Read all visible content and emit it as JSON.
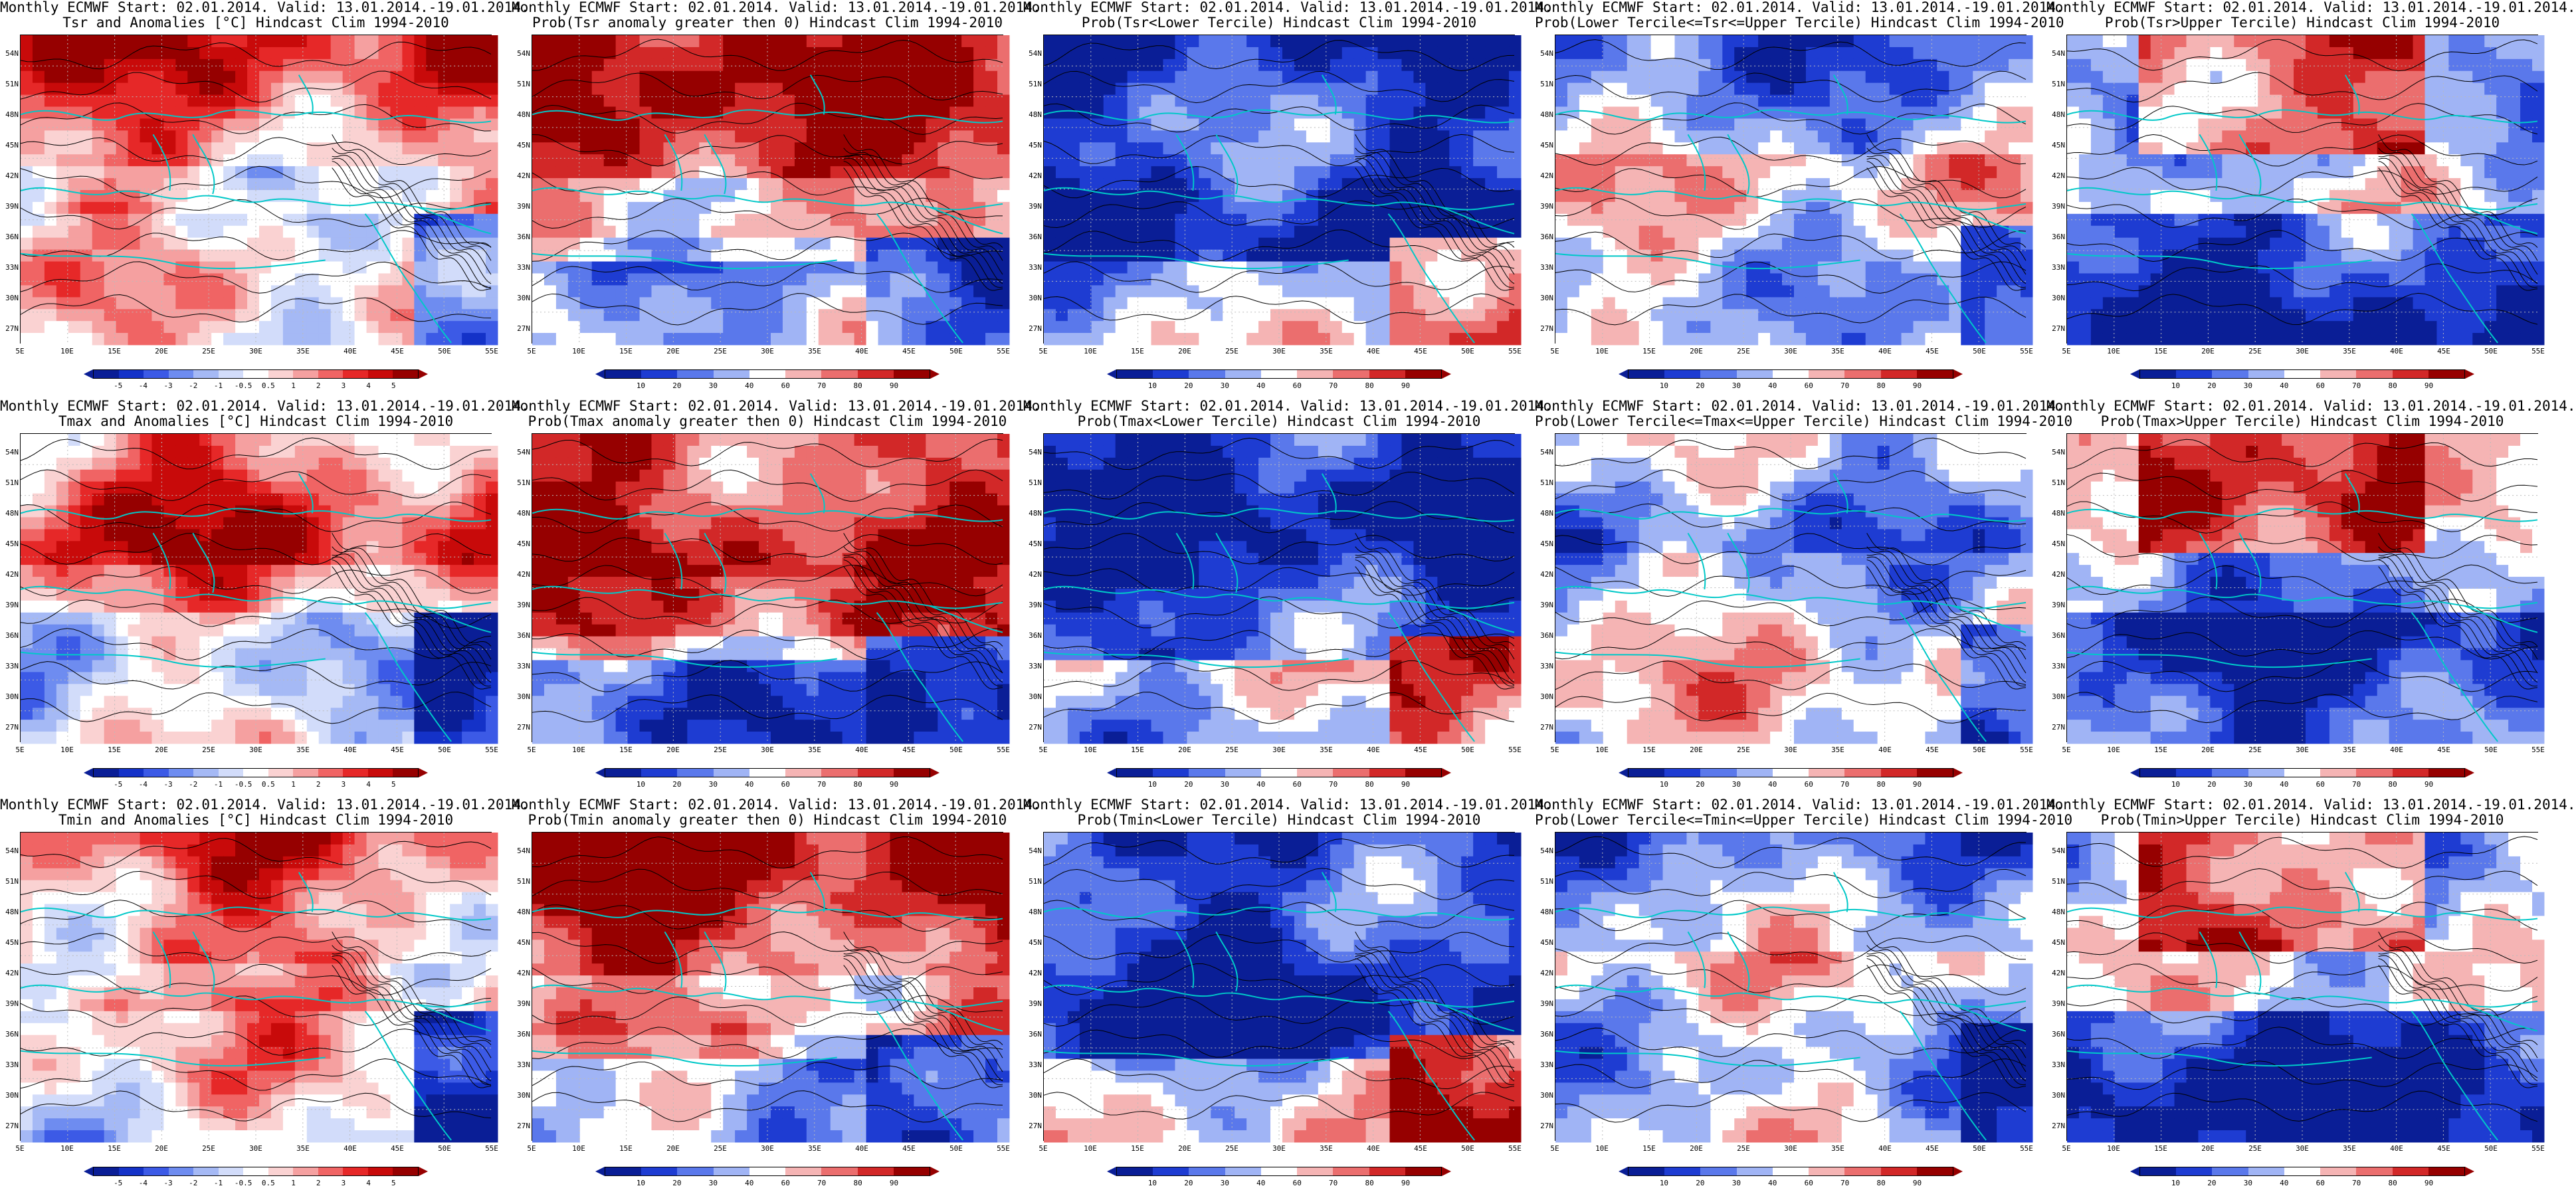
{
  "figure": {
    "rows": [
      {
        "variable": "Tsr",
        "panels": [
          {
            "title": "Monthly ECMWF Start: 02.01.2014. Valid: 13.01.2014.-19.01.2014.\nTsr and Anomalies [°C] Hindcast Clim 1994-2010",
            "kind": "anomaly",
            "pattern": 0
          },
          {
            "title": "Monthly ECMWF Start: 02.01.2014. Valid: 13.01.2014.-19.01.2014.\nProb(Tsr anomaly greater then 0) Hindcast Clim 1994-2010",
            "kind": "prob",
            "pattern": 1
          },
          {
            "title": "Monthly ECMWF Start: 02.01.2014. Valid: 13.01.2014.-19.01.2014.\nProb(Tsr<Lower Tercile) Hindcast Clim 1994-2010",
            "kind": "prob",
            "pattern": 2
          },
          {
            "title": "Monthly ECMWF Start: 02.01.2014. Valid: 13.01.2014.-19.01.2014.\nProb(Lower Tercile<=Tsr<=Upper Tercile) Hindcast Clim 1994-2010",
            "kind": "prob",
            "pattern": 3
          },
          {
            "title": "Monthly ECMWF Start: 02.01.2014. Valid: 13.01.2014.-19.01.2014.\nProb(Tsr>Upper Tercile) Hindcast Clim 1994-2010",
            "kind": "prob",
            "pattern": 4
          }
        ]
      },
      {
        "variable": "Tmax",
        "panels": [
          {
            "title": "Monthly ECMWF Start: 02.01.2014. Valid: 13.01.2014.-19.01.2014.\nTmax and Anomalies [°C] Hindcast Clim 1994-2010",
            "kind": "anomaly",
            "pattern": 0
          },
          {
            "title": "Monthly ECMWF Start: 02.01.2014. Valid: 13.01.2014.-19.01.2014.\nProb(Tmax anomaly greater then 0) Hindcast Clim 1994-2010",
            "kind": "prob",
            "pattern": 1
          },
          {
            "title": "Monthly ECMWF Start: 02.01.2014. Valid: 13.01.2014.-19.01.2014.\nProb(Tmax<Lower Tercile) Hindcast Clim 1994-2010",
            "kind": "prob",
            "pattern": 2
          },
          {
            "title": "Monthly ECMWF Start: 02.01.2014. Valid: 13.01.2014.-19.01.2014.\nProb(Lower Tercile<=Tmax<=Upper Tercile) Hindcast Clim 1994-2010",
            "kind": "prob",
            "pattern": 3
          },
          {
            "title": "Monthly ECMWF Start: 02.01.2014. Valid: 13.01.2014.-19.01.2014.\nProb(Tmax>Upper Tercile) Hindcast Clim 1994-2010",
            "kind": "prob",
            "pattern": 4
          }
        ]
      },
      {
        "variable": "Tmin",
        "panels": [
          {
            "title": "Monthly ECMWF Start: 02.01.2014. Valid: 13.01.2014.-19.01.2014.\nTmin and Anomalies [°C] Hindcast Clim 1994-2010",
            "kind": "anomaly",
            "pattern": 0
          },
          {
            "title": "Monthly ECMWF Start: 02.01.2014. Valid: 13.01.2014.-19.01.2014.\nProb(Tmin anomaly greater then 0) Hindcast Clim 1994-2010",
            "kind": "prob",
            "pattern": 1
          },
          {
            "title": "Monthly ECMWF Start: 02.01.2014. Valid: 13.01.2014.-19.01.2014.\nProb(Tmin<Lower Tercile) Hindcast Clim 1994-2010",
            "kind": "prob",
            "pattern": 2
          },
          {
            "title": "Monthly ECMWF Start: 02.01.2014. Valid: 13.01.2014.-19.01.2014.\nProb(Lower Tercile<=Tmin<=Upper Tercile) Hindcast Clim 1994-2010",
            "kind": "prob",
            "pattern": 3
          },
          {
            "title": "Monthly ECMWF Start: 02.01.2014. Valid: 13.01.2014.-19.01.2014.\nProb(Tmin>Upper Tercile) Hindcast Clim 1994-2010",
            "kind": "prob",
            "pattern": 4
          }
        ]
      }
    ],
    "lat_labels": [
      "54N",
      "51N",
      "48N",
      "45N",
      "42N",
      "39N",
      "36N",
      "33N",
      "30N",
      "27N"
    ],
    "lon_labels": [
      "5E",
      "10E",
      "15E",
      "20E",
      "25E",
      "30E",
      "35E",
      "40E",
      "45E",
      "50E",
      "55E"
    ],
    "anomaly_colorbar": {
      "labels": [
        "-5",
        "-4",
        "-3",
        "-2",
        "-1",
        "-0.5",
        "0.5",
        "1",
        "2",
        "3",
        "4",
        "5"
      ],
      "colors": [
        "#0a1e96",
        "#1432c8",
        "#3c5ae6",
        "#6e8cf0",
        "#a5b9f5",
        "#d2dcfa",
        "#ffffff",
        "#fad2d2",
        "#f5a0a0",
        "#f06464",
        "#e62828",
        "#c80a0a",
        "#960000"
      ]
    },
    "prob_colorbar": {
      "labels": [
        "10",
        "20",
        "30",
        "40",
        "60",
        "70",
        "80",
        "90"
      ],
      "colors": [
        "#0a1e96",
        "#1e3cd2",
        "#5a78eb",
        "#a0b4f5",
        "#ffffff",
        "#f5b4b4",
        "#eb6e6e",
        "#d22828",
        "#960000"
      ]
    },
    "colors": {
      "coast_cyan": "#00c8c8",
      "contour_black": "#000000",
      "grid_gray": "#bbbbbb"
    }
  }
}
